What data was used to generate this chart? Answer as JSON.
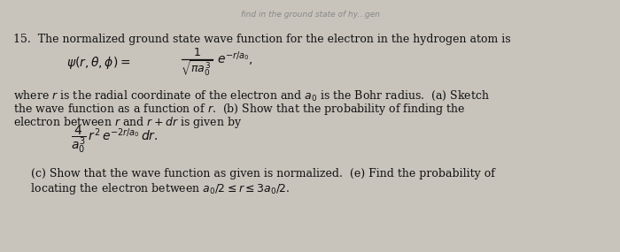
{
  "bg_color": "#c8c4bc",
  "top_strip_color": "#1a1a1a",
  "top_strip_text": "find in the ground state of hy...gen",
  "top_strip_text_color": "#888888",
  "text_color": "#111111",
  "title": "15.  The normalized ground state wave function for the electron in the hydrogen atom is",
  "body_text_1": "where $r$ is the radial coordinate of the electron and $a_0$ is the Bohr radius.  (a) Sketch",
  "body_text_2": "the wave function as a function of $r$.  (b) Show that the probability of finding the",
  "body_text_3": "electron between $r$ and $r+dr$ is given by",
  "footer_text_1": "     (c) Show that the wave function as given is normalized.  (e) Find the probability of",
  "footer_text_2": "     locating the electron between $a_0/2 \\leq r \\leq 3a_0/2$.",
  "figsize": [
    7.0,
    2.85
  ],
  "dpi": 100
}
